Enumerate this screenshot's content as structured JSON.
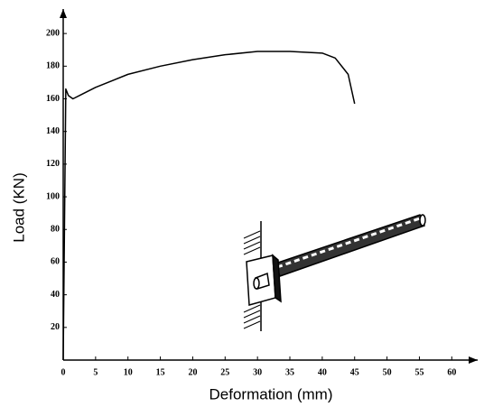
{
  "chart_data": {
    "type": "line",
    "x_label": "Deformation (mm)",
    "y_label": "Load (KN)",
    "x": [
      0,
      0.4,
      0.8,
      1.5,
      3,
      5,
      10,
      15,
      20,
      25,
      30,
      35,
      40,
      42,
      44,
      45
    ],
    "series": [
      {
        "color": "#000000",
        "values": [
          0,
          166,
          162,
          160,
          163,
          167,
          175,
          180,
          184,
          187,
          189,
          189,
          188,
          185,
          175,
          157
        ]
      }
    ],
    "xlim": [
      0,
      64
    ],
    "ylim": [
      0,
      215
    ],
    "xticks": [
      0,
      5,
      10,
      15,
      20,
      25,
      30,
      35,
      40,
      45,
      50,
      55,
      60
    ],
    "yticks": [
      20,
      40,
      60,
      80,
      100,
      120,
      140,
      160,
      180,
      200
    ],
    "grid": false
  }
}
